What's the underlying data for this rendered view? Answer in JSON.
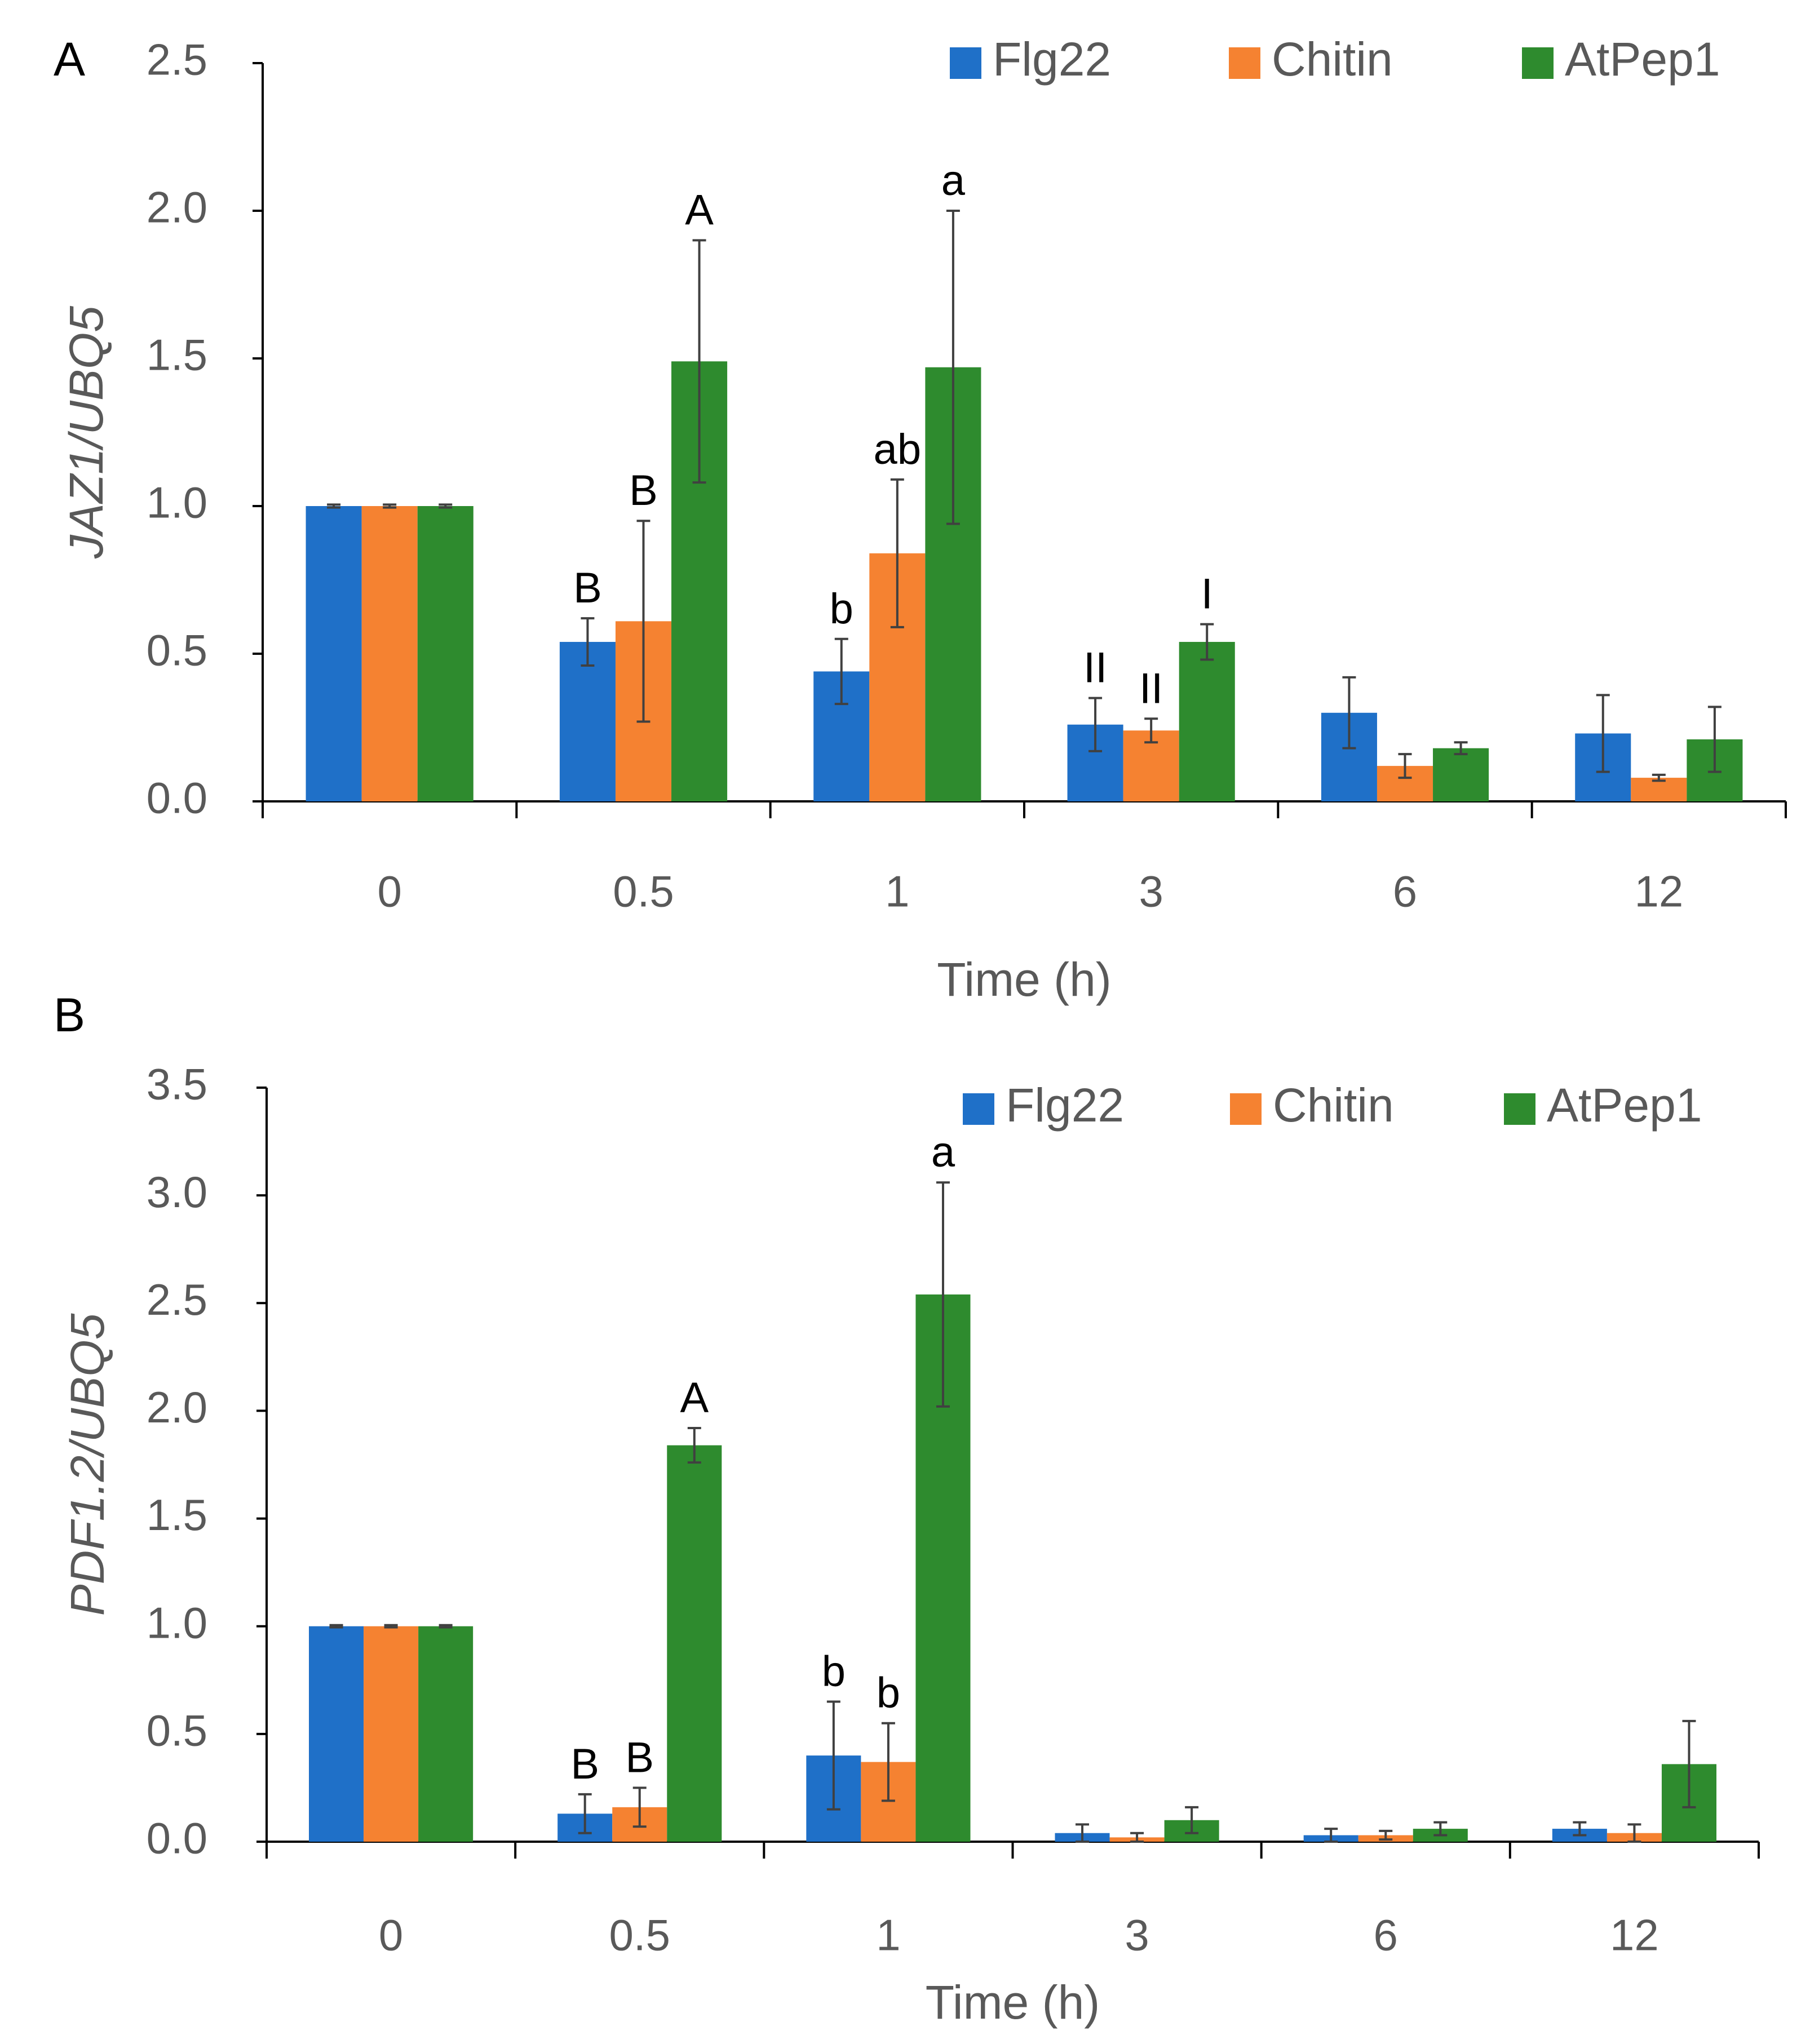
{
  "colors": {
    "Flg22": "#1f70c8",
    "Chitin": "#f58231",
    "AtPep1": "#2e8b2e",
    "axis": "#000000",
    "text": "#595959",
    "error_bar": "#404040"
  },
  "chart_data": [
    {
      "panel_label": "A",
      "type": "bar",
      "xlabel": "Time (h)",
      "ylabel": "JAZ1/UBQ5",
      "ylabel_italic": true,
      "ylim": [
        0,
        2.5
      ],
      "yticks": [
        "0.0",
        "0.5",
        "1.0",
        "1.5",
        "2.0",
        "2.5"
      ],
      "ytick_values": [
        0,
        0.5,
        1.0,
        1.5,
        2.0,
        2.5
      ],
      "categories": [
        "0",
        "0.5",
        "1",
        "3",
        "6",
        "12"
      ],
      "grid": false,
      "legend_position": "top-right",
      "series": [
        {
          "name": "Flg22",
          "values": [
            1.0,
            0.54,
            0.44,
            0.26,
            0.3,
            0.23
          ],
          "errors": [
            0.005,
            0.08,
            0.11,
            0.09,
            0.12,
            0.13
          ]
        },
        {
          "name": "Chitin",
          "values": [
            1.0,
            0.61,
            0.84,
            0.24,
            0.12,
            0.08
          ],
          "errors": [
            0.005,
            0.34,
            0.25,
            0.04,
            0.04,
            0.01
          ]
        },
        {
          "name": "AtPep1",
          "values": [
            1.0,
            1.49,
            1.47,
            0.54,
            0.18,
            0.21
          ],
          "errors": [
            0.005,
            0.41,
            0.53,
            0.06,
            0.02,
            0.11
          ]
        }
      ],
      "annotations": [
        {
          "text": "B",
          "category": "0.5",
          "series": "Flg22"
        },
        {
          "text": "B",
          "category": "0.5",
          "series": "Chitin"
        },
        {
          "text": "A",
          "category": "0.5",
          "series": "AtPep1"
        },
        {
          "text": "b",
          "category": "1",
          "series": "Flg22"
        },
        {
          "text": "ab",
          "category": "1",
          "series": "Chitin"
        },
        {
          "text": "a",
          "category": "1",
          "series": "AtPep1"
        },
        {
          "text": "II",
          "category": "3",
          "series": "Flg22"
        },
        {
          "text": "II",
          "category": "3",
          "series": "Chitin"
        },
        {
          "text": "I",
          "category": "3",
          "series": "AtPep1"
        }
      ]
    },
    {
      "panel_label": "B",
      "type": "bar",
      "xlabel": "Time (h)",
      "ylabel": "PDF1.2/UBQ5",
      "ylabel_italic": true,
      "ylim": [
        0,
        3.5
      ],
      "yticks": [
        "0.0",
        "0.5",
        "1.0",
        "1.5",
        "2.0",
        "2.5",
        "3.0",
        "3.5"
      ],
      "ytick_values": [
        0,
        0.5,
        1.0,
        1.5,
        2.0,
        2.5,
        3.0,
        3.5
      ],
      "categories": [
        "0",
        "0.5",
        "1",
        "3",
        "6",
        "12"
      ],
      "grid": false,
      "legend_position": "top-right",
      "series": [
        {
          "name": "Flg22",
          "values": [
            1.0,
            0.13,
            0.4,
            0.04,
            0.03,
            0.06
          ],
          "errors": [
            0.005,
            0.09,
            0.25,
            0.04,
            0.03,
            0.03
          ]
        },
        {
          "name": "Chitin",
          "values": [
            1.0,
            0.16,
            0.37,
            0.02,
            0.03,
            0.04
          ],
          "errors": [
            0.005,
            0.09,
            0.18,
            0.02,
            0.02,
            0.04
          ]
        },
        {
          "name": "AtPep1",
          "values": [
            1.0,
            1.84,
            2.54,
            0.1,
            0.06,
            0.36
          ],
          "errors": [
            0.005,
            0.08,
            0.52,
            0.06,
            0.03,
            0.2
          ]
        }
      ],
      "annotations": [
        {
          "text": "B",
          "category": "0.5",
          "series": "Flg22"
        },
        {
          "text": "B",
          "category": "0.5",
          "series": "Chitin"
        },
        {
          "text": "A",
          "category": "0.5",
          "series": "AtPep1"
        },
        {
          "text": "b",
          "category": "1",
          "series": "Flg22"
        },
        {
          "text": "b",
          "category": "1",
          "series": "Chitin"
        },
        {
          "text": "a",
          "category": "1",
          "series": "AtPep1"
        }
      ]
    }
  ]
}
